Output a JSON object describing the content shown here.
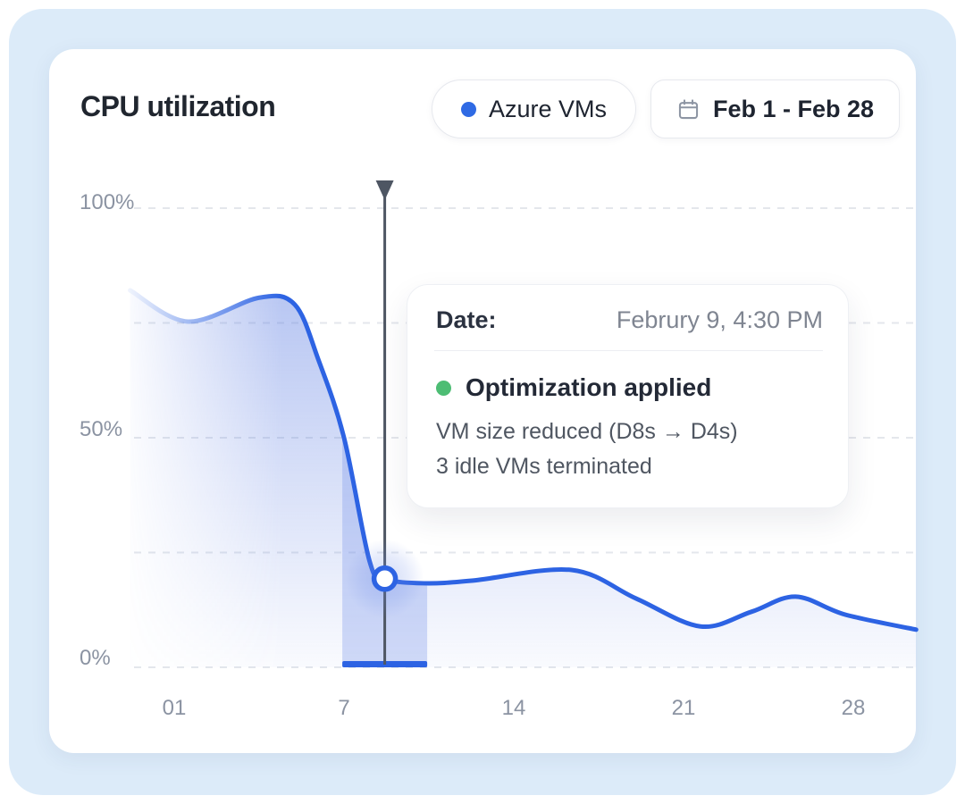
{
  "page": {
    "bg": "#ffffff",
    "panel_bg": "#dcebf9",
    "card_bg": "#ffffff"
  },
  "header": {
    "title": "CPU utilization",
    "legend_pill": {
      "label": "Azure VMs",
      "dot_color": "#2f6ae4"
    },
    "date_pill": {
      "label": "Feb 1 - Feb 28",
      "icon": "calendar-icon"
    }
  },
  "tooltip": {
    "date_label": "Date:",
    "date_value": "Februry 9, 4:30 PM",
    "event_title": "Optimization applied",
    "event_dot_color": "#4dbd74",
    "details": [
      "VM size reduced (D8s → D4s)",
      "3 idle VMs terminated"
    ]
  },
  "chart_data": {
    "type": "area",
    "title": "CPU utilization",
    "series_name": "Azure VMs",
    "line_color": "#2d63e3",
    "x_tick_labels": [
      "01",
      "7",
      "14",
      "21",
      "28"
    ],
    "y_tick_labels": [
      "100%",
      "50%",
      "0%"
    ],
    "y_range": [
      0,
      100
    ],
    "grid_percents": [
      100,
      75,
      50,
      25,
      0
    ],
    "grid_style": "dashed",
    "x_unit": "tick-index (0 = Feb 01 tick, 1 = Feb 7 tick, ...)",
    "curve_points": [
      [
        -0.26,
        82.1
      ],
      [
        0.08,
        75.3
      ],
      [
        0.5,
        80.5
      ],
      [
        0.71,
        79.0
      ],
      [
        0.85,
        66.9
      ],
      [
        1.0,
        50.0
      ],
      [
        1.15,
        23.2
      ],
      [
        1.24,
        19.3
      ],
      [
        1.47,
        18.3
      ],
      [
        1.76,
        18.9
      ],
      [
        2.34,
        21.2
      ],
      [
        2.72,
        15.0
      ],
      [
        3.1,
        8.9
      ],
      [
        3.4,
        12.1
      ],
      [
        3.66,
        15.4
      ],
      [
        3.95,
        11.5
      ],
      [
        4.37,
        8.2
      ]
    ],
    "marker": {
      "x": 1.24,
      "value": 19.3,
      "label": "Februry 9, 4:30 PM"
    },
    "highlight_band": {
      "x_start": 0.99,
      "x_end": 1.49
    }
  }
}
